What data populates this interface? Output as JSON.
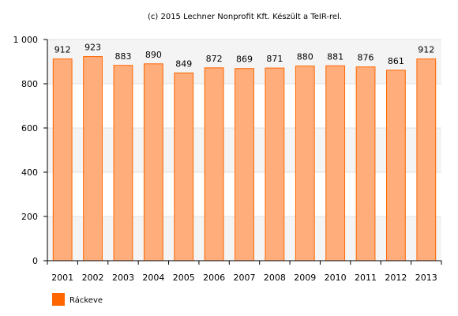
{
  "chart_data": {
    "type": "bar",
    "title": "(c) 2015 Lechner Nonprofit Kft. Készült a TeIR-rel.",
    "xlabel": "",
    "ylabel": "",
    "categories": [
      "2001",
      "2002",
      "2003",
      "2004",
      "2005",
      "2006",
      "2007",
      "2008",
      "2009",
      "2010",
      "2011",
      "2012",
      "2013"
    ],
    "series": [
      {
        "name": "Ráckeve",
        "color": "#ff6600",
        "fill": "#ffad7a",
        "values": [
          912,
          923,
          883,
          890,
          849,
          872,
          869,
          871,
          880,
          881,
          876,
          861,
          912
        ]
      }
    ],
    "ylim": [
      0,
      1000
    ],
    "yticks": [
      {
        "value": 0,
        "label": "0"
      },
      {
        "value": 200,
        "label": "200"
      },
      {
        "value": 400,
        "label": "400"
      },
      {
        "value": 600,
        "label": "600"
      },
      {
        "value": 800,
        "label": "800"
      },
      {
        "value": 1000,
        "label": "1 000"
      }
    ],
    "grid": true,
    "legend": "bottom-left"
  }
}
